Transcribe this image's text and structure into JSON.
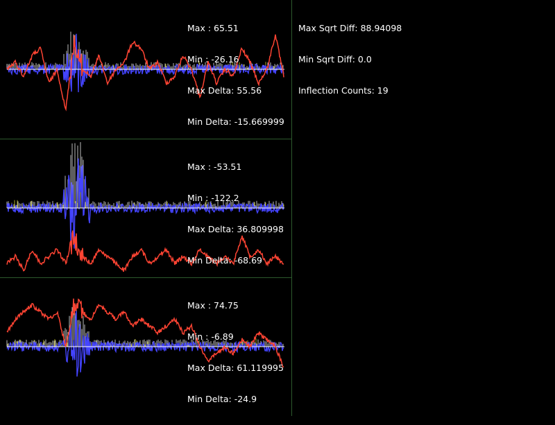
{
  "global_stats": {
    "max_sqrt_diff": "Max Sqrt Diff: 88.94098",
    "min_sqrt_diff": "Min Sqrt Diff: 0.0",
    "inflection_counts": "Inflection Counts: 19"
  },
  "panels": [
    {
      "max": "Max : 65.51",
      "min": "Min : -26.16",
      "max_delta": "Max Delta: 55.56",
      "min_delta": "Min Delta: -15.669999"
    },
    {
      "max": "Max : -53.51",
      "min": "Min : -122.2",
      "max_delta": "Max Delta: 36.809998",
      "min_delta": "Min Delta: -68.69"
    },
    {
      "max": "Max : 74.75",
      "min": "Min : -6.89",
      "max_delta": "Max Delta: 61.119995",
      "min_delta": "Min Delta: -24.9"
    }
  ],
  "colors": {
    "background": "#000000",
    "divider": "#2d5a2d",
    "signal": "#ff4433",
    "delta": "#4444ff",
    "magnitude": "#bbbbbb",
    "accent": "#aaaa22",
    "text": "#ffffff"
  },
  "chart_data": {
    "type": "line",
    "grid": false,
    "panels": [
      {
        "series": [
          {
            "values": [
              0.5,
              0.45,
              0.55,
              0.4,
              0.35,
              0.6,
              0.5,
              0.8,
              0.3,
              0.5,
              0.55,
              0.4,
              0.6,
              0.5,
              0.45,
              0.3,
              0.35,
              0.5,
              0.45,
              0.6,
              0.55,
              0.4,
              0.5,
              0.7,
              0.45,
              0.6,
              0.5,
              0.55,
              0.35,
              0.45,
              0.6,
              0.5,
              0.25,
              0.55
            ]
          }
        ]
      },
      {
        "series": [
          {
            "values": [
              0.9,
              0.85,
              0.95,
              0.8,
              0.9,
              0.85,
              0.8,
              0.9,
              0.7,
              0.85,
              0.9,
              0.8,
              0.85,
              0.9,
              0.95,
              0.85,
              0.8,
              0.9,
              0.85,
              0.8,
              0.9,
              0.85,
              0.9,
              0.8,
              0.85,
              0.9,
              0.85,
              0.9,
              0.7,
              0.85,
              0.8,
              0.9,
              0.85,
              0.9
            ]
          }
        ]
      },
      {
        "series": [
          {
            "values": [
              0.4,
              0.3,
              0.25,
              0.2,
              0.25,
              0.3,
              0.25,
              0.5,
              0.2,
              0.25,
              0.3,
              0.2,
              0.25,
              0.3,
              0.25,
              0.35,
              0.3,
              0.35,
              0.4,
              0.35,
              0.3,
              0.4,
              0.35,
              0.5,
              0.6,
              0.55,
              0.5,
              0.55,
              0.45,
              0.5,
              0.4,
              0.45,
              0.5,
              0.65
            ]
          }
        ]
      }
    ]
  }
}
